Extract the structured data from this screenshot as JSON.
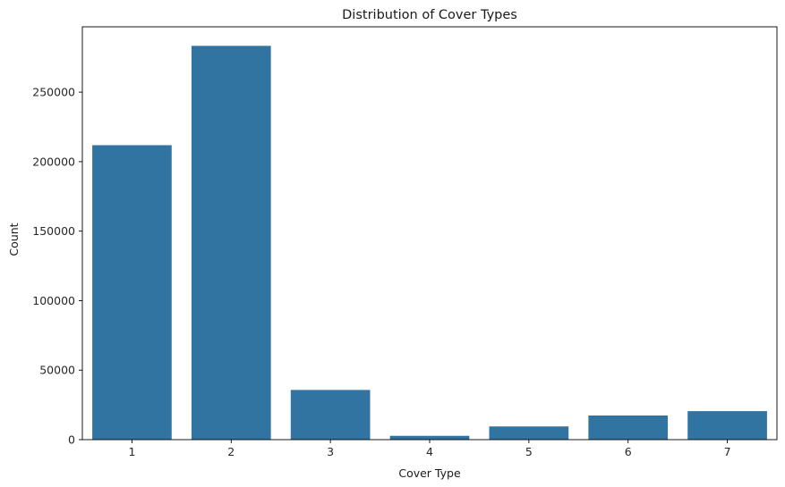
{
  "chart_data": {
    "type": "bar",
    "title": "Distribution of Cover Types",
    "xlabel": "Cover Type",
    "ylabel": "Count",
    "categories": [
      "1",
      "2",
      "3",
      "4",
      "5",
      "6",
      "7"
    ],
    "values": [
      211840,
      283301,
      35754,
      2747,
      9493,
      17367,
      20510
    ],
    "ylim": [
      0,
      297000
    ],
    "yticks": [
      0,
      50000,
      100000,
      150000,
      200000,
      250000
    ],
    "grid": false,
    "bar_color": "#3274a1"
  }
}
